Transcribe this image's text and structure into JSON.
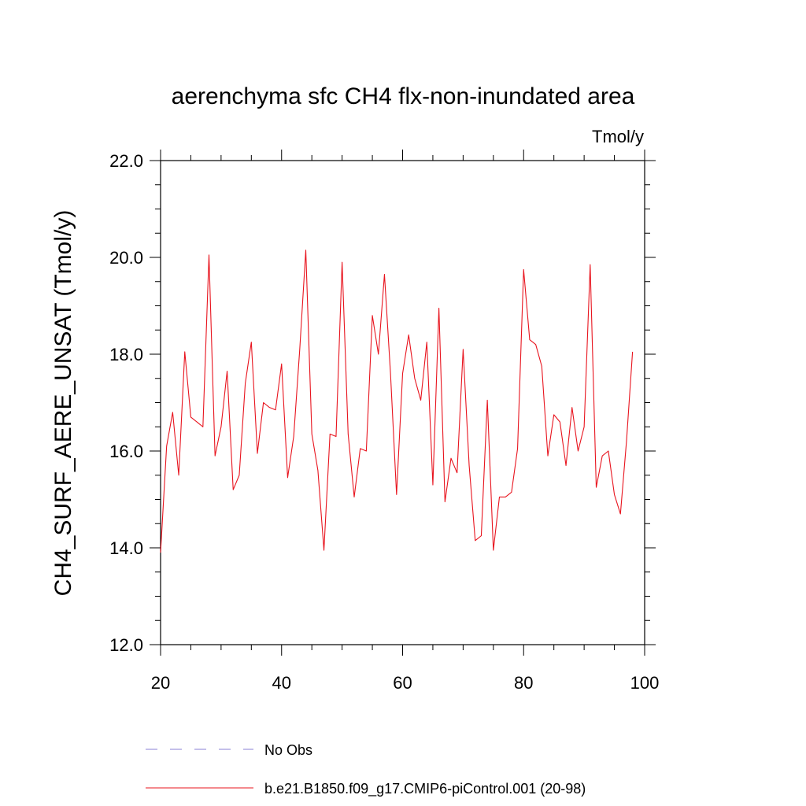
{
  "chart_data": {
    "type": "line",
    "title": "aerenchyma sfc CH4 flx-non-inundated area",
    "units_label": "Tmol/y",
    "ylabel": "CH4_SURF_AERE_UNSAT  (Tmol/y)",
    "xlabel": "",
    "xlim": [
      20,
      100
    ],
    "ylim": [
      12.0,
      22.0
    ],
    "x_ticks": [
      20,
      40,
      60,
      80,
      100
    ],
    "x_tick_labels": [
      "20",
      "40",
      "60",
      "80",
      "100"
    ],
    "y_ticks": [
      12.0,
      14.0,
      16.0,
      18.0,
      20.0,
      22.0
    ],
    "y_tick_labels": [
      "12.0",
      "14.0",
      "16.0",
      "18.0",
      "20.0",
      "22.0"
    ],
    "grid": false,
    "legend_position": "bottom",
    "series": [
      {
        "name": "No Obs",
        "color": "#8a7fd6",
        "dash": true,
        "x": [],
        "values": []
      },
      {
        "name": "b.e21.B1850.f09_g17.CMIP6-piControl.001 (20-98)",
        "color": "#e8141e",
        "dash": false,
        "x": [
          20,
          21,
          22,
          23,
          24,
          25,
          26,
          27,
          28,
          29,
          30,
          31,
          32,
          33,
          34,
          35,
          36,
          37,
          38,
          39,
          40,
          41,
          42,
          43,
          44,
          45,
          46,
          47,
          48,
          49,
          50,
          51,
          52,
          53,
          54,
          55,
          56,
          57,
          58,
          59,
          60,
          61,
          62,
          63,
          64,
          65,
          66,
          67,
          68,
          69,
          70,
          71,
          72,
          73,
          74,
          75,
          76,
          77,
          78,
          79,
          80,
          81,
          82,
          83,
          84,
          85,
          86,
          87,
          88,
          89,
          90,
          91,
          92,
          93,
          94,
          95,
          96,
          97,
          98
        ],
        "values": [
          13.9,
          16.1,
          16.8,
          15.5,
          18.05,
          16.7,
          16.6,
          16.5,
          20.05,
          15.9,
          16.5,
          17.65,
          15.2,
          15.5,
          17.4,
          18.25,
          15.95,
          17.0,
          16.9,
          16.85,
          17.8,
          15.45,
          16.3,
          18.1,
          20.15,
          16.35,
          15.6,
          13.95,
          16.35,
          16.3,
          19.9,
          16.35,
          15.05,
          16.05,
          16.0,
          18.8,
          18.0,
          19.65,
          17.6,
          15.1,
          17.6,
          18.4,
          17.5,
          17.05,
          18.25,
          15.3,
          18.95,
          14.95,
          15.85,
          15.55,
          18.1,
          15.7,
          14.15,
          14.25,
          17.05,
          13.95,
          15.05,
          15.05,
          15.15,
          16.05,
          19.75,
          18.3,
          18.2,
          17.75,
          15.9,
          16.75,
          16.6,
          15.7,
          16.9,
          16.0,
          16.5,
          19.85,
          15.25,
          15.9,
          16.0,
          15.1,
          14.7,
          16.2,
          18.05
        ]
      }
    ]
  }
}
